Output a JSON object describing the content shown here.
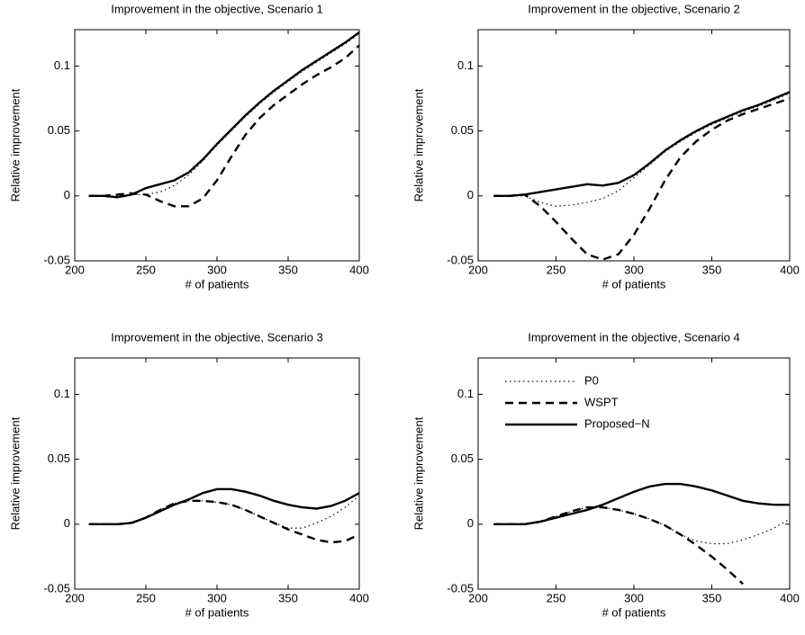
{
  "chart_data": [
    {
      "type": "line",
      "title": "Improvement in the objective, Scenario 1",
      "xlabel": "# of patients",
      "ylabel": "Relative improvement",
      "x": [
        210,
        220,
        230,
        240,
        250,
        260,
        270,
        280,
        290,
        300,
        310,
        320,
        330,
        340,
        350,
        360,
        370,
        380,
        390,
        400
      ],
      "series": [
        {
          "name": "P0",
          "color": "#000000",
          "style": "dotted",
          "values": [
            0,
            0,
            0,
            0.001,
            0.001,
            0.003,
            0.008,
            0.016,
            0.027,
            0.039,
            0.05,
            0.061,
            0.071,
            0.08,
            0.088,
            0.096,
            0.103,
            0.11,
            0.117,
            0.125
          ]
        },
        {
          "name": "WSPT",
          "color": "#000000",
          "style": "dashed",
          "values": [
            0,
            0,
            0.001,
            0.002,
            0.001,
            -0.004,
            -0.008,
            -0.008,
            -0.002,
            0.012,
            0.03,
            0.047,
            0.06,
            0.07,
            0.078,
            0.086,
            0.093,
            0.099,
            0.106,
            0.116
          ]
        },
        {
          "name": "Proposed−N",
          "color": "#000000",
          "style": "solid",
          "values": [
            0,
            0,
            -0.001,
            0.001,
            0.006,
            0.009,
            0.012,
            0.018,
            0.028,
            0.04,
            0.051,
            0.062,
            0.072,
            0.081,
            0.089,
            0.097,
            0.104,
            0.111,
            0.118,
            0.126
          ]
        }
      ],
      "xlim": [
        200,
        400
      ],
      "xticks": [
        200,
        250,
        300,
        350,
        400
      ],
      "ylim": [
        -0.05,
        0.128
      ],
      "yticks": [
        -0.05,
        0,
        0.05,
        0.1
      ],
      "legend": false
    },
    {
      "type": "line",
      "title": "Improvement in the objective, Scenario 2",
      "xlabel": "# of patients",
      "ylabel": "Relative improvement",
      "x": [
        210,
        220,
        230,
        240,
        250,
        260,
        270,
        280,
        290,
        300,
        310,
        320,
        330,
        340,
        350,
        360,
        370,
        380,
        390,
        400
      ],
      "series": [
        {
          "name": "P0",
          "color": "#000000",
          "style": "dotted",
          "values": [
            0,
            0,
            0,
            -0.005,
            -0.008,
            -0.007,
            -0.005,
            -0.002,
            0.004,
            0.014,
            0.024,
            0.034,
            0.042,
            0.049,
            0.055,
            0.06,
            0.065,
            0.069,
            0.074,
            0.079
          ]
        },
        {
          "name": "WSPT",
          "color": "#000000",
          "style": "dashed",
          "values": [
            0,
            0,
            0.001,
            -0.008,
            -0.02,
            -0.033,
            -0.045,
            -0.049,
            -0.045,
            -0.03,
            -0.01,
            0.012,
            0.03,
            0.042,
            0.051,
            0.058,
            0.063,
            0.067,
            0.071,
            0.075
          ]
        },
        {
          "name": "Proposed−N",
          "color": "#000000",
          "style": "solid",
          "values": [
            0,
            0,
            0.001,
            0.003,
            0.005,
            0.007,
            0.009,
            0.008,
            0.01,
            0.016,
            0.025,
            0.035,
            0.043,
            0.05,
            0.056,
            0.061,
            0.066,
            0.07,
            0.075,
            0.08
          ]
        }
      ],
      "xlim": [
        200,
        400
      ],
      "xticks": [
        200,
        250,
        300,
        350,
        400
      ],
      "ylim": [
        -0.05,
        0.128
      ],
      "yticks": [
        -0.05,
        0,
        0.05,
        0.1
      ],
      "legend": false
    },
    {
      "type": "line",
      "title": "Improvement in the objective, Scenario 3",
      "xlabel": "# of patients",
      "ylabel": "Relative improvement",
      "x": [
        210,
        220,
        230,
        240,
        250,
        260,
        270,
        280,
        290,
        300,
        310,
        320,
        330,
        340,
        350,
        360,
        370,
        380,
        390,
        400
      ],
      "series": [
        {
          "name": "P0",
          "color": "#000000",
          "style": "dotted",
          "values": [
            0,
            0,
            0,
            0.001,
            0.005,
            0.011,
            0.016,
            0.018,
            0.018,
            0.017,
            0.015,
            0.011,
            0.006,
            0.001,
            -0.003,
            -0.003,
            0.001,
            0.006,
            0.013,
            0.022
          ]
        },
        {
          "name": "WSPT",
          "color": "#000000",
          "style": "dashed",
          "values": [
            0,
            0,
            0,
            0.001,
            0.005,
            0.011,
            0.016,
            0.018,
            0.018,
            0.017,
            0.015,
            0.011,
            0.006,
            0.001,
            -0.004,
            -0.008,
            -0.012,
            -0.014,
            -0.013,
            -0.008
          ]
        },
        {
          "name": "Proposed−N",
          "color": "#000000",
          "style": "solid",
          "values": [
            0,
            0,
            0,
            0.001,
            0.005,
            0.01,
            0.015,
            0.019,
            0.024,
            0.027,
            0.027,
            0.025,
            0.022,
            0.018,
            0.015,
            0.013,
            0.012,
            0.014,
            0.018,
            0.024
          ]
        }
      ],
      "xlim": [
        200,
        400
      ],
      "xticks": [
        200,
        250,
        300,
        350,
        400
      ],
      "ylim": [
        -0.05,
        0.128
      ],
      "yticks": [
        -0.05,
        0,
        0.05,
        0.1
      ],
      "legend": false
    },
    {
      "type": "line",
      "title": "Improvement in the objective, Scenario 4",
      "xlabel": "# of patients",
      "ylabel": "Relative improvement",
      "x": [
        210,
        220,
        230,
        240,
        250,
        260,
        270,
        280,
        290,
        300,
        310,
        320,
        330,
        340,
        350,
        360,
        370,
        380,
        390,
        400
      ],
      "series": [
        {
          "name": "P0",
          "color": "#000000",
          "style": "dotted",
          "values": [
            0,
            0,
            0,
            0.002,
            0.006,
            0.01,
            0.013,
            0.013,
            0.011,
            0.008,
            0.004,
            -0.001,
            -0.008,
            -0.013,
            -0.015,
            -0.015,
            -0.012,
            -0.008,
            -0.003,
            0.004
          ]
        },
        {
          "name": "WSPT",
          "color": "#000000",
          "style": "dashed",
          "values": [
            0,
            0,
            0,
            0.002,
            0.006,
            0.01,
            0.013,
            0.013,
            0.011,
            0.008,
            0.004,
            -0.001,
            -0.008,
            -0.016,
            -0.025,
            -0.035,
            -0.046,
            null,
            null,
            null
          ]
        },
        {
          "name": "Proposed−N",
          "color": "#000000",
          "style": "solid",
          "values": [
            0,
            0,
            0,
            0.002,
            0.005,
            0.008,
            0.011,
            0.015,
            0.02,
            0.025,
            0.029,
            0.031,
            0.031,
            0.029,
            0.026,
            0.022,
            0.018,
            0.016,
            0.015,
            0.015
          ]
        }
      ],
      "xlim": [
        200,
        400
      ],
      "xticks": [
        200,
        250,
        300,
        350,
        400
      ],
      "ylim": [
        -0.05,
        0.128
      ],
      "yticks": [
        -0.05,
        0,
        0.05,
        0.1
      ],
      "legend": true,
      "legend_position": "upper-left"
    }
  ]
}
